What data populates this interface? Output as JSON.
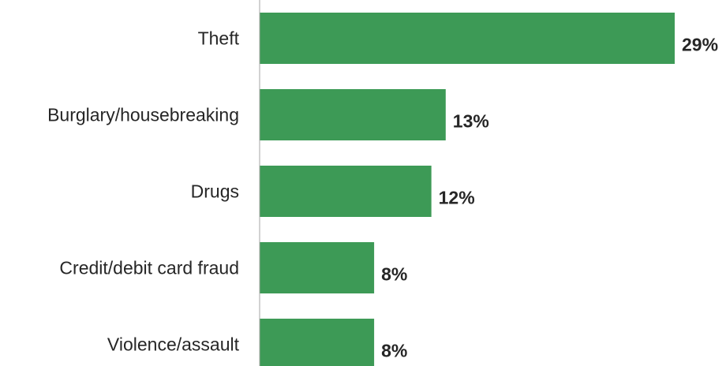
{
  "chart_data": {
    "type": "bar",
    "orientation": "horizontal",
    "categories": [
      "Theft",
      "Burglary/housebreaking",
      "Drugs",
      "Credit/debit card fraud",
      "Violence/assault"
    ],
    "values": [
      29,
      13,
      12,
      8,
      8
    ],
    "value_labels": [
      "29%",
      "13%",
      "12%",
      "8%",
      "8%"
    ],
    "unit": "%",
    "xlim": [
      0,
      29
    ],
    "bar_color": "#3d9a56",
    "axis_line_color": "#a6a6a6",
    "grid": false,
    "legend": "none"
  }
}
